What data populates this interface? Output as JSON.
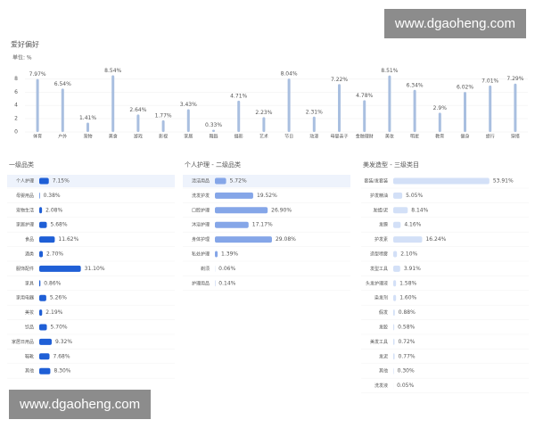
{
  "chart_data": {
    "type": "bar",
    "title": "爱好偏好",
    "unit": "单位: %",
    "categories": [
      "体育",
      "户外",
      "宠物",
      "美食",
      "游戏",
      "影视",
      "家居",
      "舞蹈",
      "摄影",
      "艺术",
      "节日",
      "动漫",
      "母婴亲子",
      "金融理财",
      "美妆",
      "明星",
      "教育",
      "健身",
      "旅行",
      "穿搭"
    ],
    "values": [
      7.97,
      6.54,
      1.41,
      8.54,
      2.64,
      1.77,
      3.43,
      0.33,
      4.71,
      2.23,
      8.04,
      2.31,
      7.22,
      4.78,
      8.51,
      6.34,
      2.9,
      6.02,
      7.01,
      7.29
    ],
    "value_labels": [
      "7.97%",
      "6.54%",
      "1.41%",
      "8.54%",
      "2.64%",
      "1.77%",
      "3.43%",
      "0.33%",
      "4.71%",
      "2.23%",
      "8.04%",
      "2.31%",
      "7.22%",
      "4.78%",
      "8.51%",
      "6.34%",
      "2.9%",
      "6.02%",
      "7.01%",
      "7.29%"
    ],
    "color": "#a9bfe0",
    "ylim": [
      0,
      9
    ],
    "yticks": [
      0,
      2,
      4,
      6,
      8
    ],
    "grid": true
  },
  "lists": [
    {
      "title": "一级品类",
      "color": "#1f5fd6",
      "categories": [
        "个人护理",
        "母婴用品",
        "宠物生活",
        "家居护理",
        "食品",
        "酒类",
        "服饰配件",
        "家具",
        "家用电器",
        "美妆",
        "饮品",
        "家居日用品",
        "鞋靴",
        "其他"
      ],
      "values": [
        7.15,
        0.38,
        2.08,
        5.68,
        11.62,
        2.7,
        31.1,
        0.86,
        5.26,
        2.19,
        5.7,
        9.32,
        7.68,
        8.3
      ],
      "value_labels": [
        "7.15%",
        "0.38%",
        "2.08%",
        "5.68%",
        "11.62%",
        "2.70%",
        "31.10%",
        "0.86%",
        "5.26%",
        "2.19%",
        "5.70%",
        "9.32%",
        "7.68%",
        "8.30%"
      ]
    },
    {
      "title": "个人护理 - 二级品类",
      "color": "#85a6e8",
      "categories": [
        "清洁用品",
        "洗发护发",
        "口腔护理",
        "沐浴护理",
        "身体护理",
        "私处护理",
        "剃须",
        "护理用品"
      ],
      "values": [
        5.72,
        19.52,
        26.9,
        17.17,
        29.08,
        1.39,
        0.06,
        0.14
      ],
      "value_labels": [
        "5.72%",
        "19.52%",
        "26.90%",
        "17.17%",
        "29.08%",
        "1.39%",
        "0.06%",
        "0.14%"
      ]
    },
    {
      "title": "美发造型 - 三级类目",
      "color": "#d3e0f7",
      "categories": [
        "套装/发套装",
        "护发精油",
        "发蜡/泥",
        "发膜",
        "护发素",
        "造型喷雾",
        "发型工具",
        "头发护理液",
        "染发剂",
        "假发",
        "发胶",
        "美发工具",
        "发泥",
        "其他",
        "洗发液"
      ],
      "values": [
        53.91,
        5.05,
        8.14,
        4.16,
        16.24,
        2.1,
        3.91,
        1.58,
        1.6,
        0.88,
        0.58,
        0.72,
        0.77,
        0.3,
        0.05
      ],
      "value_labels": [
        "53.91%",
        "5.05%",
        "8.14%",
        "4.16%",
        "16.24%",
        "2.10%",
        "3.91%",
        "1.58%",
        "1.60%",
        "0.88%",
        "0.58%",
        "0.72%",
        "0.77%",
        "0.30%",
        "0.05%"
      ]
    }
  ],
  "watermarks": [
    "www.dgaoheng.com",
    "www.dgaoheng.com"
  ]
}
